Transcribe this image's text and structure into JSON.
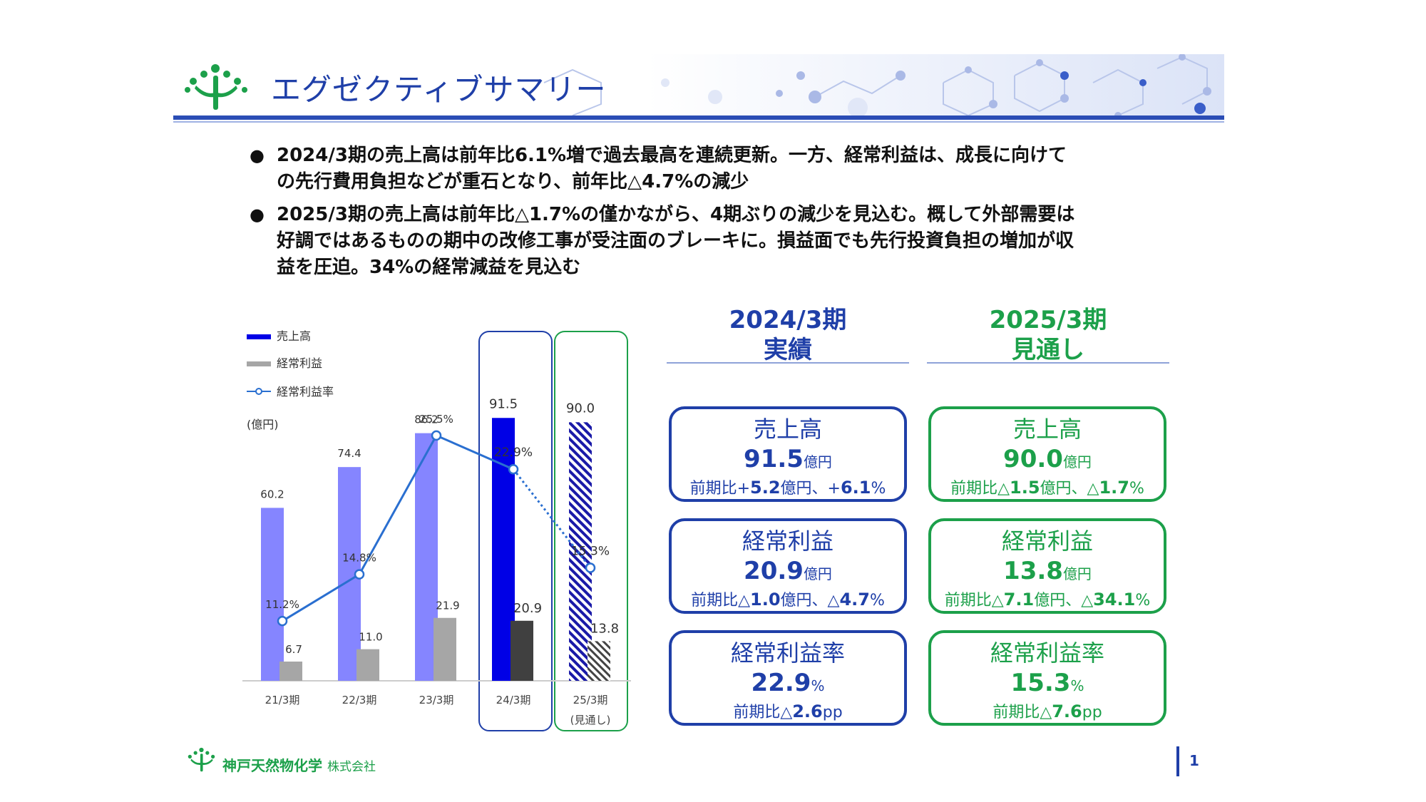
{
  "title": "エグゼクティブサマリー",
  "bullets": [
    {
      "lines": [
        "2024/3期の売上高は前年比6.1%増で過去最高を連続更新。一方、経常利益は、成長に向けて",
        "の先行費用負担などが重石となり、前年比△4.7%の減少"
      ]
    },
    {
      "lines": [
        "2025/3期の売上高は前年比△1.7%の僅かながら、4期ぶりの減少を見込む。概して外部需要は",
        "好調ではあるものの期中の改修工事が受注面のブレーキに。損益面でも先行投資負担の増加が収",
        "益を圧迫。34%の経常減益を見込む"
      ]
    }
  ],
  "chart_data": {
    "type": "bar",
    "unit_label": "(億円)",
    "categories": [
      "21/3期",
      "22/3期",
      "23/3期",
      "24/3期",
      "25/3期"
    ],
    "category_note": "(見通し)",
    "legend": [
      "売上高",
      "経常利益",
      "経常利益率"
    ],
    "series": [
      {
        "name": "売上高",
        "values": [
          60.2,
          74.4,
          86.2,
          91.5,
          90.0
        ]
      },
      {
        "name": "経常利益",
        "values": [
          6.7,
          11.0,
          21.9,
          20.9,
          13.8
        ]
      },
      {
        "name": "経常利益率",
        "values": [
          11.2,
          14.8,
          25.5,
          22.9,
          15.3
        ],
        "labels": [
          "11.2%",
          "14.8%",
          "25.5%",
          "22.9%",
          "15.3%"
        ]
      }
    ],
    "colors": {
      "sales": "#8585ff",
      "sales_highlight": "#0000e6",
      "profit": "#a6a6a6",
      "profit_highlight": "#404040",
      "ratio": "#2a6fd0",
      "box_2024": "#1f3fa8",
      "box_2025": "#1ca04a"
    }
  },
  "columns": {
    "c2024": {
      "head_line1": "2024/3期",
      "head_line2": "実績"
    },
    "c2025": {
      "head_line1": "2025/3期",
      "head_line2": "見通し"
    }
  },
  "cards": {
    "sales_2024": {
      "label": "売上高",
      "value": "91.5",
      "unit": "億円",
      "sub_pre": "前期比+",
      "sub_v1": "5.2",
      "sub_mid": "億円、+",
      "sub_v2": "6.1",
      "sub_post": "%"
    },
    "profit_2024": {
      "label": "経常利益",
      "value": "20.9",
      "unit": "億円",
      "sub_pre": "前期比△",
      "sub_v1": "1.0",
      "sub_mid": "億円、△",
      "sub_v2": "4.7",
      "sub_post": "%"
    },
    "ratio_2024": {
      "label": "経常利益率",
      "value": "22.9",
      "unit": "%",
      "sub_pre": "前期比△",
      "sub_v1": "2.6",
      "sub_post": "pp"
    },
    "sales_2025": {
      "label": "売上高",
      "value": "90.0",
      "unit": "億円",
      "sub_pre": "前期比△",
      "sub_v1": "1.5",
      "sub_mid": "億円、△",
      "sub_v2": "1.7",
      "sub_post": "%"
    },
    "profit_2025": {
      "label": "経常利益",
      "value": "13.8",
      "unit": "億円",
      "sub_pre": "前期比△",
      "sub_v1": "7.1",
      "sub_mid": "億円、△",
      "sub_v2": "34.1",
      "sub_post": "%"
    },
    "ratio_2025": {
      "label": "経常利益率",
      "value": "15.3",
      "unit": "%",
      "sub_pre": "前期比△",
      "sub_v1": "7.6",
      "sub_post": "pp"
    }
  },
  "footer": {
    "company": "神戸天然物化学",
    "company_suffix": "株式会社",
    "page": "1"
  }
}
